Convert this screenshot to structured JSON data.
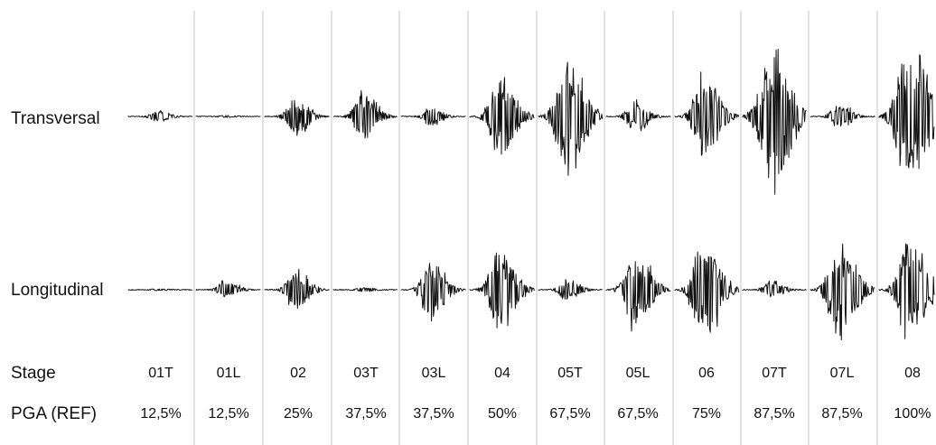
{
  "chart_data": {
    "type": "line",
    "rows": {
      "transversal": "Transversal",
      "longitudinal": "Longitudinal",
      "stage": "Stage",
      "pga": "PGA (REF)"
    },
    "stages": [
      "01T",
      "01L",
      "02",
      "03T",
      "03L",
      "04",
      "05T",
      "05L",
      "06",
      "07T",
      "07L",
      "08"
    ],
    "pga": [
      "12,5%",
      "12,5%",
      "25%",
      "37,5%",
      "37,5%",
      "50%",
      "67,5%",
      "67,5%",
      "75%",
      "87,5%",
      "87,5%",
      "100%"
    ],
    "series": [
      {
        "name": "Transversal",
        "peak": [
          0.08,
          0.01,
          0.27,
          0.32,
          0.13,
          0.55,
          0.75,
          0.22,
          0.55,
          0.95,
          0.18,
          1.0
        ]
      },
      {
        "name": "Longitudinal",
        "peak": [
          0.01,
          0.13,
          0.28,
          0.03,
          0.41,
          0.55,
          0.15,
          0.55,
          0.69,
          0.12,
          0.68,
          0.72
        ]
      }
    ],
    "grid": false,
    "legend": "none"
  }
}
